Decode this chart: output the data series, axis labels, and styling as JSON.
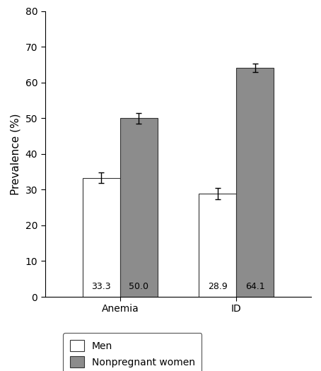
{
  "categories": [
    "Anemia",
    "ID"
  ],
  "men_values": [
    33.3,
    28.9
  ],
  "women_values": [
    50.0,
    64.1
  ],
  "men_errors": [
    1.5,
    1.5
  ],
  "women_errors": [
    1.5,
    1.2
  ],
  "men_color": "#ffffff",
  "women_color": "#8c8c8c",
  "bar_edge_color": "#333333",
  "bar_width": 0.42,
  "group_centers": [
    1.0,
    2.3
  ],
  "ylim": [
    0,
    80
  ],
  "yticks": [
    0,
    10,
    20,
    30,
    40,
    50,
    60,
    70,
    80
  ],
  "ylabel": "Prevalence (%)",
  "legend_labels": [
    "Men",
    "Nonpregnant women"
  ],
  "bar_labels_men": [
    "33.3",
    "28.9"
  ],
  "bar_labels_women": [
    "50.0",
    "64.1"
  ],
  "label_fontsize": 9,
  "tick_fontsize": 10,
  "ylabel_fontsize": 11,
  "legend_fontsize": 10
}
